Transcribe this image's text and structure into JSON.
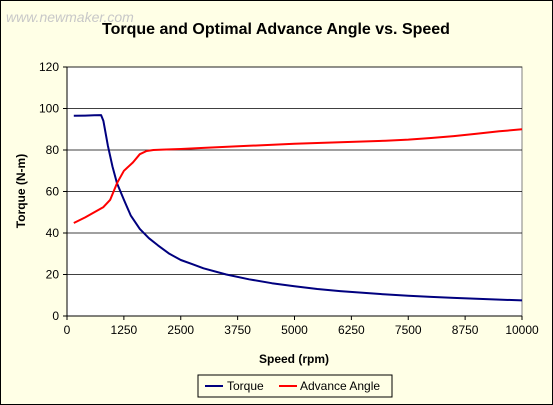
{
  "watermark": "www.newmaker.com",
  "chart_data": {
    "type": "line",
    "title": "Torque and Optimal Advance Angle vs. Speed",
    "xlabel": "Speed (rpm)",
    "ylabel": "Torque (N-m)",
    "xlim": [
      0,
      10000
    ],
    "ylim": [
      0,
      120
    ],
    "x_ticks": [
      0,
      1250,
      2500,
      3750,
      5000,
      6250,
      7500,
      8750,
      10000
    ],
    "y_ticks": [
      0,
      20,
      40,
      60,
      80,
      100,
      120
    ],
    "grid": "horizontal",
    "legend_position": "bottom",
    "background_color": "#ffffe6",
    "plot_background_color": "#ffffff",
    "series": [
      {
        "name": "Torque",
        "color": "#00007f",
        "x": [
          150,
          400,
          600,
          750,
          800,
          900,
          1000,
          1100,
          1250,
          1400,
          1600,
          1800,
          2000,
          2250,
          2500,
          2750,
          3000,
          3500,
          4000,
          4500,
          5000,
          5500,
          6000,
          6500,
          7000,
          7500,
          8000,
          8500,
          9000,
          9500,
          10000
        ],
        "y": [
          96.5,
          96.6,
          96.7,
          96.8,
          94,
          82,
          72,
          64,
          56,
          48.5,
          42,
          37.5,
          34,
          30,
          27,
          25,
          23,
          20,
          17.7,
          15.8,
          14.3,
          13,
          12,
          11.2,
          10.4,
          9.8,
          9.2,
          8.7,
          8.3,
          7.9,
          7.5
        ]
      },
      {
        "name": "Advance Angle",
        "color": "#ff0000",
        "x": [
          150,
          400,
          600,
          800,
          950,
          1100,
          1250,
          1450,
          1600,
          1750,
          1900,
          2100,
          2500,
          3000,
          4000,
          5000,
          6000,
          7000,
          7500,
          8000,
          8500,
          9000,
          9500,
          10000
        ],
        "y": [
          44.8,
          47.5,
          50,
          52.5,
          56,
          64,
          70,
          74,
          78,
          79.5,
          80,
          80.2,
          80.5,
          81,
          82,
          83,
          83.7,
          84.5,
          85,
          85.8,
          86.7,
          87.8,
          89,
          90
        ]
      }
    ]
  }
}
